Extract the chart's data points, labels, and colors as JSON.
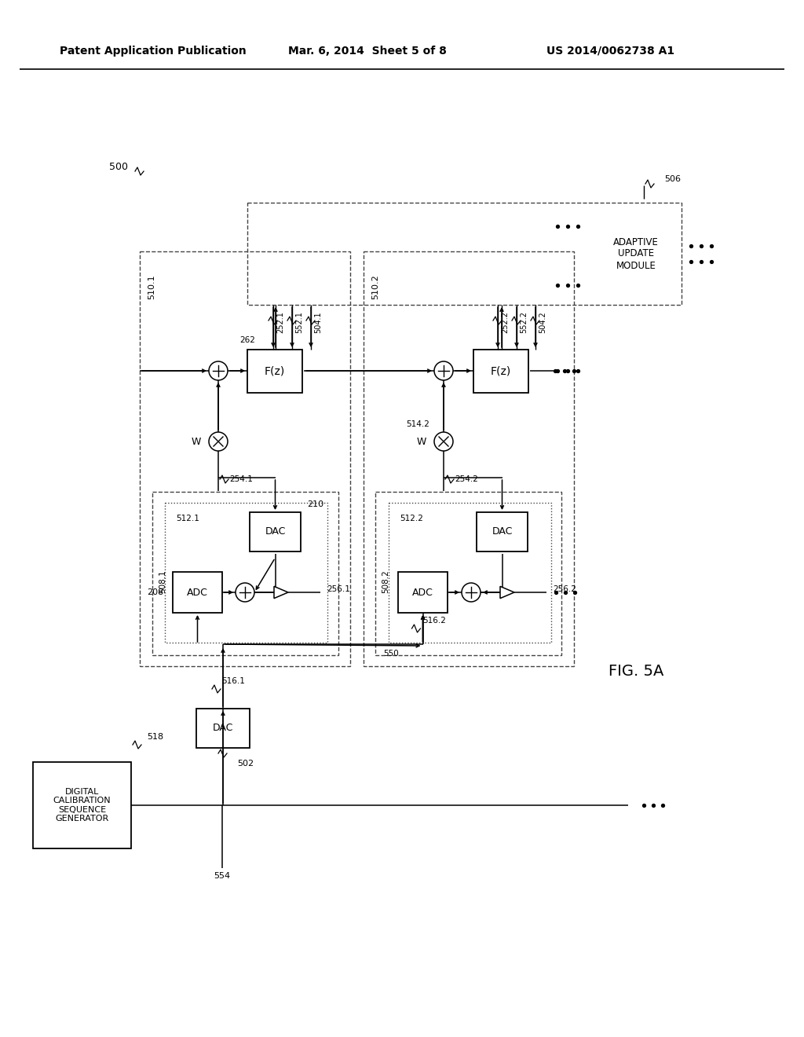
{
  "bg_color": "#ffffff",
  "header_left": "Patent Application Publication",
  "header_mid": "Mar. 6, 2014  Sheet 5 of 8",
  "header_right": "US 2014/0062738 A1",
  "fig_label": "FIG. 5A",
  "ref_500": "500",
  "ref_506": "506",
  "ref_510_1": "510.1",
  "ref_510_2": "510.2",
  "ref_508_1": "508.1",
  "ref_508_2": "508.2",
  "ref_512_1": "512.1",
  "ref_512_2": "512.2",
  "ref_252_1": "252.1",
  "ref_252_2": "252.2",
  "ref_552_1": "552.1",
  "ref_552_2": "552.2",
  "ref_504_1": "504.1",
  "ref_504_2": "504.2",
  "ref_254_1": "254.1",
  "ref_254_2": "254.2",
  "ref_262": "262",
  "ref_514_2": "514.2",
  "ref_208": "208",
  "ref_210": "210",
  "ref_516_1": "516.1",
  "ref_516_2": "516.2",
  "ref_550": "550",
  "ref_256_1": "256.1",
  "ref_256_2": "256.2",
  "ref_518": "518",
  "ref_554": "554",
  "ref_502": "502",
  "label_W": "W",
  "label_adaptive": "ADAPTIVE\nUPDATE\nMODULE",
  "label_dcs": "DIGITAL\nCALIBRATION\nSEQUENCE\nGENERATOR",
  "label_ADC": "ADC",
  "label_DAC": "DAC",
  "label_Fz": "F(z)"
}
